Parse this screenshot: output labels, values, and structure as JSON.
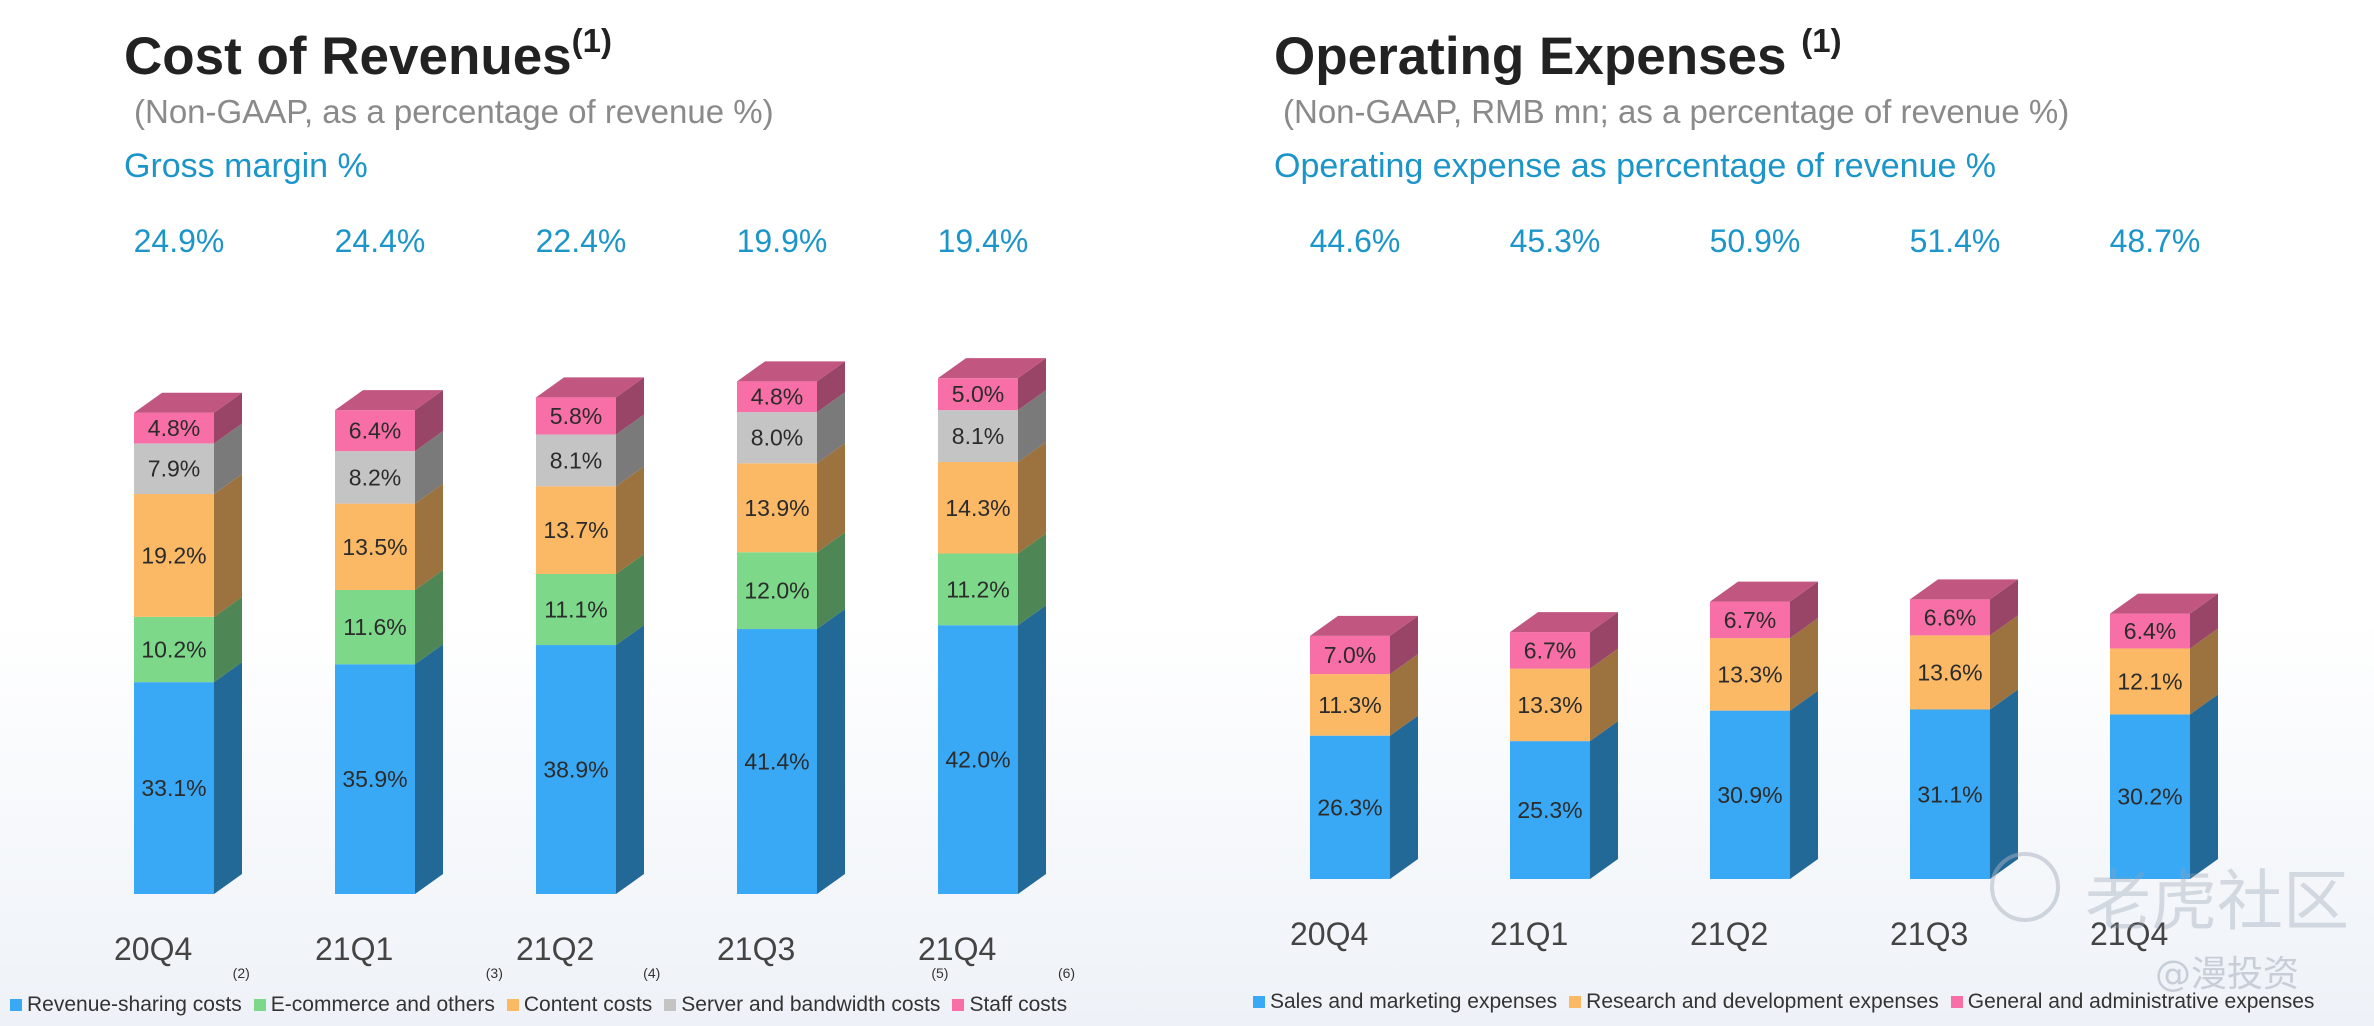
{
  "chart_data": [
    {
      "type": "bar",
      "stacked": true,
      "title": "Cost of Revenues",
      "title_note": "(1)",
      "subtitle": "(Non-GAAP, as a percentage of revenue %)",
      "metric_label": "Gross margin %",
      "categories": [
        "20Q4",
        "21Q1",
        "21Q2",
        "21Q3",
        "21Q4"
      ],
      "top_values": [
        "24.9%",
        "24.4%",
        "22.4%",
        "19.9%",
        "19.4%"
      ],
      "ylim": [
        0,
        100
      ],
      "series": [
        {
          "name": "Revenue-sharing costs",
          "note": "(2)",
          "color": "#39a9f5",
          "values": [
            33.1,
            35.9,
            38.9,
            41.4,
            42.0
          ]
        },
        {
          "name": "E-commerce and others",
          "note": "(3)",
          "color": "#7dd88a",
          "values": [
            10.2,
            11.6,
            11.1,
            12.0,
            11.2
          ]
        },
        {
          "name": "Content costs",
          "note": "(4)",
          "color": "#fbb966",
          "values": [
            19.2,
            13.5,
            13.7,
            13.9,
            14.3
          ]
        },
        {
          "name": "Server and bandwidth costs",
          "note": "(5)",
          "color": "#c4c4c4",
          "values": [
            7.9,
            8.2,
            8.1,
            8.0,
            8.1
          ]
        },
        {
          "name": "Staff costs",
          "note": "(6)",
          "color": "#f76fa6",
          "values": [
            4.8,
            6.4,
            5.8,
            4.8,
            5.0
          ]
        }
      ],
      "legend_position": "bottom"
    },
    {
      "type": "bar",
      "stacked": true,
      "title": "Operating Expenses",
      "title_note": "(1)",
      "subtitle": "(Non-GAAP, RMB mn; as a percentage of revenue %)",
      "metric_label": "Operating expense as percentage of revenue %",
      "categories": [
        "20Q4",
        "21Q1",
        "21Q2",
        "21Q3",
        "21Q4"
      ],
      "top_values": [
        "44.6%",
        "45.3%",
        "50.9%",
        "51.4%",
        "48.7%"
      ],
      "ylim": [
        0,
        100
      ],
      "series": [
        {
          "name": "Sales and marketing expenses",
          "color": "#39a9f5",
          "values": [
            26.3,
            25.3,
            30.9,
            31.1,
            30.2
          ]
        },
        {
          "name": "Research and development expenses",
          "color": "#fbb966",
          "values": [
            11.3,
            13.3,
            13.3,
            13.6,
            12.1
          ]
        },
        {
          "name": "General and administrative expenses",
          "color": "#f76fa6",
          "values": [
            7.0,
            6.7,
            6.7,
            6.6,
            6.4
          ]
        }
      ],
      "legend_position": "bottom"
    }
  ],
  "watermark": {
    "main": "老虎社区",
    "sub": "@漫投资"
  }
}
